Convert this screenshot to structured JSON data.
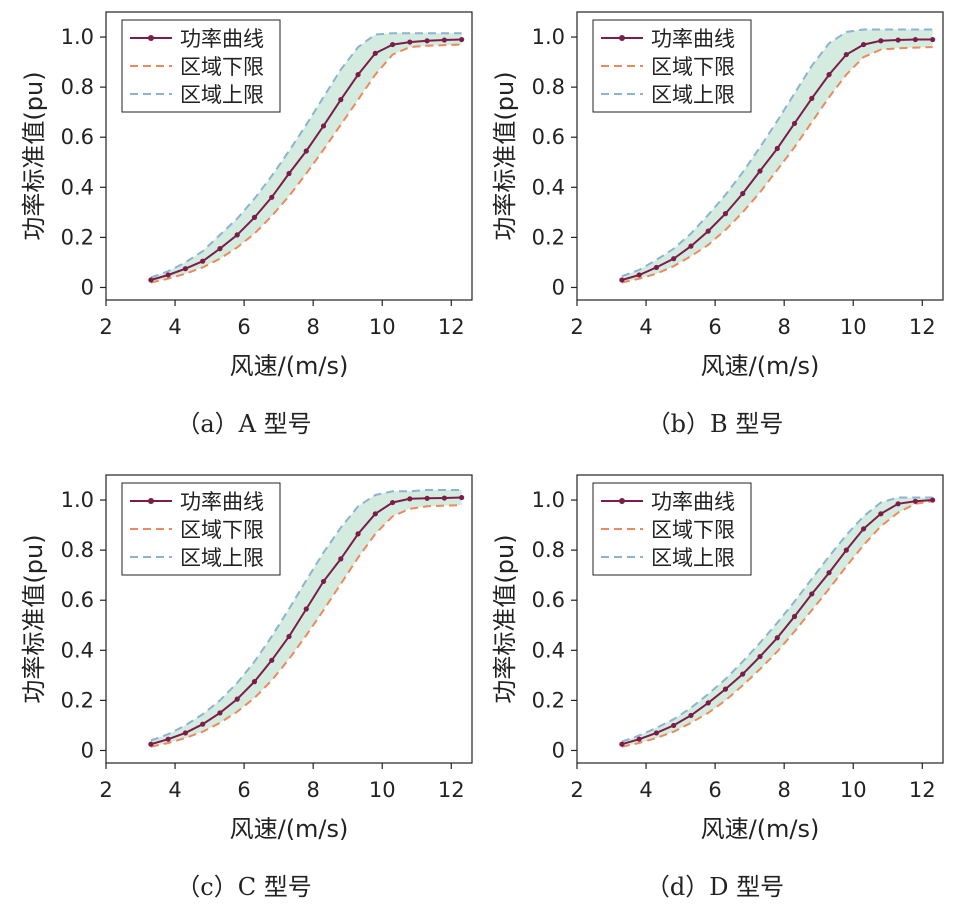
{
  "colors": {
    "power": "#7b1d48",
    "lower": "#ec8a5b",
    "upper": "#8cb4d1",
    "band": "#cfe9dd"
  },
  "chart_data": [
    {
      "type": "line",
      "caption": {
        "label": "（a）",
        "model": "A",
        "suffix": "型号"
      },
      "xlabel": "风速/(m/s)",
      "ylabel": "功率标准值(pu)",
      "xlim": [
        2,
        12.6
      ],
      "ylim": [
        -0.05,
        1.1
      ],
      "xticks": [
        "2",
        "4",
        "6",
        "8",
        "10",
        "12"
      ],
      "yticks": [
        "0",
        "0.2",
        "0.4",
        "0.6",
        "0.8",
        "1.0"
      ],
      "legend": [
        "功率曲线",
        "区域下限",
        "区域上限"
      ],
      "x": [
        3.3,
        3.8,
        4.3,
        4.8,
        5.3,
        5.8,
        6.3,
        6.8,
        7.3,
        7.8,
        8.3,
        8.8,
        9.3,
        9.8,
        10.3,
        10.8,
        11.3,
        11.8,
        12.3
      ],
      "series": [
        {
          "name": "功率曲线",
          "values": [
            0.03,
            0.05,
            0.075,
            0.105,
            0.155,
            0.21,
            0.28,
            0.36,
            0.455,
            0.545,
            0.645,
            0.75,
            0.85,
            0.935,
            0.97,
            0.98,
            0.985,
            0.988,
            0.99
          ]
        },
        {
          "name": "区域下限",
          "values": [
            0.02,
            0.035,
            0.055,
            0.08,
            0.115,
            0.16,
            0.215,
            0.285,
            0.365,
            0.455,
            0.55,
            0.65,
            0.75,
            0.85,
            0.93,
            0.96,
            0.965,
            0.968,
            0.97
          ]
        },
        {
          "name": "区域上限",
          "values": [
            0.04,
            0.065,
            0.1,
            0.145,
            0.21,
            0.275,
            0.355,
            0.445,
            0.545,
            0.65,
            0.76,
            0.87,
            0.96,
            1.01,
            1.015,
            1.015,
            1.015,
            1.015,
            1.015
          ]
        }
      ]
    },
    {
      "type": "line",
      "caption": {
        "label": "（b）",
        "model": "B",
        "suffix": "型号"
      },
      "xlabel": "风速/(m/s)",
      "ylabel": "功率标准值(pu)",
      "xlim": [
        2,
        12.6
      ],
      "ylim": [
        -0.05,
        1.1
      ],
      "xticks": [
        "2",
        "4",
        "6",
        "8",
        "10",
        "12"
      ],
      "yticks": [
        "0",
        "0.2",
        "0.4",
        "0.6",
        "0.8",
        "1.0"
      ],
      "legend": [
        "功率曲线",
        "区域下限",
        "区域上限"
      ],
      "x": [
        3.3,
        3.8,
        4.3,
        4.8,
        5.3,
        5.8,
        6.3,
        6.8,
        7.3,
        7.8,
        8.3,
        8.8,
        9.3,
        9.8,
        10.3,
        10.8,
        11.3,
        11.8,
        12.3
      ],
      "series": [
        {
          "name": "功率曲线",
          "values": [
            0.03,
            0.05,
            0.08,
            0.115,
            0.165,
            0.225,
            0.295,
            0.375,
            0.465,
            0.555,
            0.655,
            0.755,
            0.85,
            0.93,
            0.97,
            0.985,
            0.988,
            0.99,
            0.99
          ]
        },
        {
          "name": "区域下限",
          "values": [
            0.02,
            0.035,
            0.055,
            0.085,
            0.125,
            0.17,
            0.23,
            0.3,
            0.38,
            0.47,
            0.56,
            0.66,
            0.76,
            0.85,
            0.92,
            0.95,
            0.955,
            0.958,
            0.96
          ]
        },
        {
          "name": "区域上限",
          "values": [
            0.045,
            0.07,
            0.11,
            0.155,
            0.215,
            0.29,
            0.37,
            0.46,
            0.56,
            0.665,
            0.775,
            0.885,
            0.975,
            1.02,
            1.03,
            1.03,
            1.03,
            1.03,
            1.03
          ]
        }
      ]
    },
    {
      "type": "line",
      "caption": {
        "label": "（c）",
        "model": "C",
        "suffix": "型号"
      },
      "xlabel": "风速/(m/s)",
      "ylabel": "功率标准值(pu)",
      "xlim": [
        2,
        12.6
      ],
      "ylim": [
        -0.05,
        1.1
      ],
      "xticks": [
        "2",
        "4",
        "6",
        "8",
        "10",
        "12"
      ],
      "yticks": [
        "0",
        "0.2",
        "0.4",
        "0.6",
        "0.8",
        "1.0"
      ],
      "legend": [
        "功率曲线",
        "区域下限",
        "区域上限"
      ],
      "x": [
        3.3,
        3.8,
        4.3,
        4.8,
        5.3,
        5.8,
        6.3,
        6.8,
        7.3,
        7.8,
        8.3,
        8.8,
        9.3,
        9.8,
        10.3,
        10.8,
        11.3,
        11.8,
        12.3
      ],
      "series": [
        {
          "name": "功率曲线",
          "values": [
            0.025,
            0.045,
            0.07,
            0.105,
            0.15,
            0.205,
            0.275,
            0.36,
            0.455,
            0.565,
            0.675,
            0.765,
            0.865,
            0.945,
            0.99,
            1.005,
            1.007,
            1.008,
            1.01
          ]
        },
        {
          "name": "区域下限",
          "values": [
            0.015,
            0.03,
            0.05,
            0.075,
            0.11,
            0.155,
            0.21,
            0.28,
            0.365,
            0.46,
            0.56,
            0.665,
            0.77,
            0.865,
            0.935,
            0.965,
            0.975,
            0.978,
            0.98
          ]
        },
        {
          "name": "区域上限",
          "values": [
            0.04,
            0.065,
            0.1,
            0.145,
            0.2,
            0.27,
            0.355,
            0.455,
            0.565,
            0.68,
            0.79,
            0.89,
            0.975,
            1.02,
            1.035,
            1.035,
            1.04,
            1.04,
            1.04
          ]
        }
      ]
    },
    {
      "type": "line",
      "caption": {
        "label": "（d）",
        "model": "D",
        "suffix": "型号"
      },
      "xlabel": "风速/(m/s)",
      "ylabel": "功率标准值(pu)",
      "xlim": [
        2,
        12.6
      ],
      "ylim": [
        -0.05,
        1.1
      ],
      "xticks": [
        "2",
        "4",
        "6",
        "8",
        "10",
        "12"
      ],
      "yticks": [
        "0",
        "0.2",
        "0.4",
        "0.6",
        "0.8",
        "1.0"
      ],
      "legend": [
        "功率曲线",
        "区域下限",
        "区域上限"
      ],
      "x": [
        3.3,
        3.8,
        4.3,
        4.8,
        5.3,
        5.8,
        6.3,
        6.8,
        7.3,
        7.8,
        8.3,
        8.8,
        9.3,
        9.8,
        10.3,
        10.8,
        11.3,
        11.8,
        12.3
      ],
      "series": [
        {
          "name": "功率曲线",
          "values": [
            0.025,
            0.045,
            0.07,
            0.1,
            0.14,
            0.19,
            0.245,
            0.305,
            0.375,
            0.45,
            0.535,
            0.625,
            0.71,
            0.8,
            0.885,
            0.945,
            0.985,
            0.995,
            1.0
          ]
        },
        {
          "name": "区域下限",
          "values": [
            0.015,
            0.03,
            0.05,
            0.075,
            0.11,
            0.15,
            0.2,
            0.26,
            0.325,
            0.395,
            0.475,
            0.56,
            0.645,
            0.735,
            0.82,
            0.895,
            0.95,
            0.985,
            0.995
          ]
        },
        {
          "name": "区域上限",
          "values": [
            0.035,
            0.06,
            0.09,
            0.125,
            0.17,
            0.225,
            0.285,
            0.355,
            0.43,
            0.51,
            0.595,
            0.685,
            0.775,
            0.86,
            0.935,
            0.99,
            1.01,
            1.01,
            1.01
          ]
        }
      ]
    }
  ]
}
